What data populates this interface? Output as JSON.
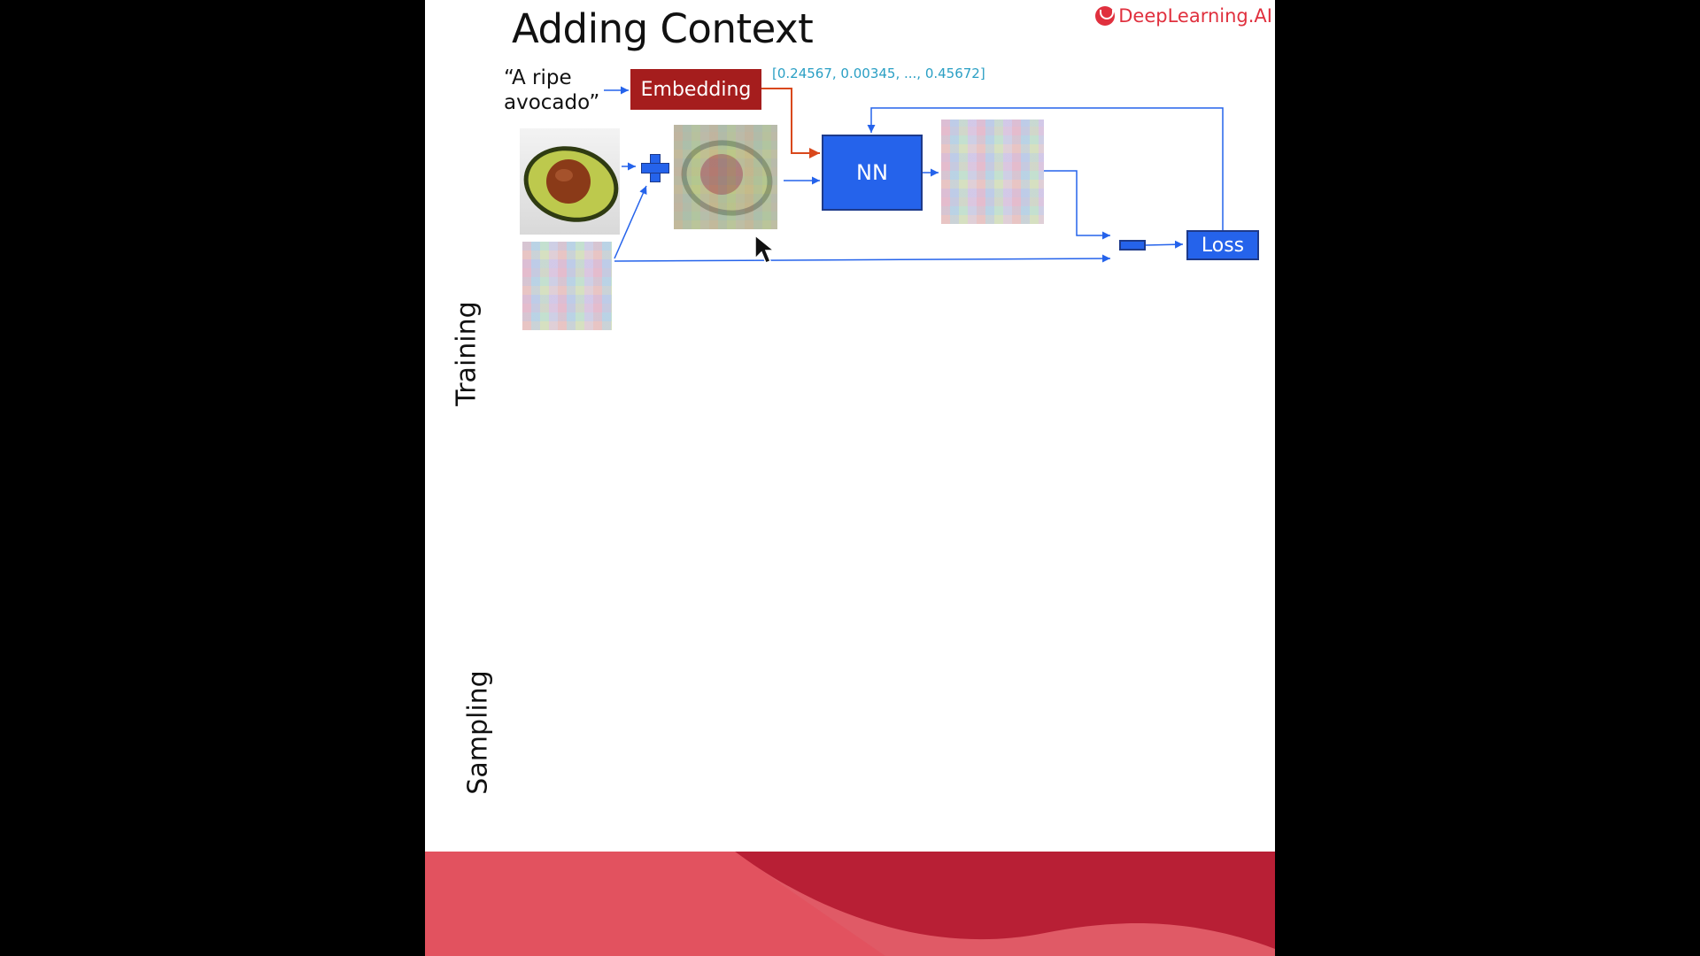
{
  "slide": {
    "title": "Adding Context",
    "brand": "DeepLearning.AI",
    "sections": {
      "training": "Training",
      "sampling": "Sampling"
    }
  },
  "diagram": {
    "prompt": "“A ripe avocado”",
    "embedding_label": "Embedding",
    "embedding_vector": "[0.24567, 0.00345, ..., 0.45672]",
    "nn_label": "NN",
    "loss_label": "Loss"
  },
  "colors": {
    "accent_blue": "#2563eb",
    "embedding_red": "#a51d1d",
    "vector_text": "#2a9fc4",
    "brand_red": "#e0303e"
  }
}
